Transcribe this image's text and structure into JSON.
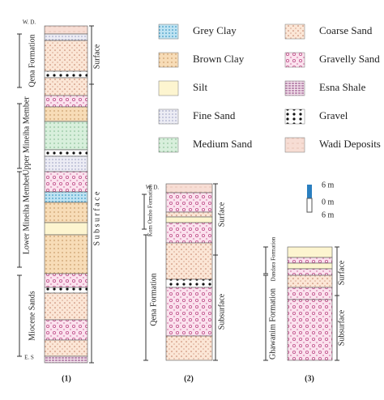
{
  "legend": [
    "Grey Clay",
    "Brown Clay",
    "Silt",
    "Fine Sand",
    "Medium Sand",
    "Coarse Sand",
    "Gravelly Sand",
    "Esna Shale",
    "Gravel",
    "Wadi Deposits"
  ],
  "scale": [
    "6 m",
    "0 m",
    "6 m"
  ],
  "columns": [
    {
      "label": "(1)",
      "formations": [
        "W. D.",
        "Qena Formation",
        "Upper Mineiha Member",
        "Lower Mineiha Member",
        "Miocene Sands",
        "E. S"
      ],
      "zones": [
        "Surface",
        "S u b s u r f a c e"
      ]
    },
    {
      "label": "(2)",
      "formations": [
        "W. D.",
        "Kom Ombo Formation",
        "Qena Formation"
      ],
      "zones": [
        "Surface",
        "Subsurface"
      ]
    },
    {
      "label": "(3)",
      "formations": [
        "Dandara Formation",
        "Ghawanim Formation"
      ],
      "zones": [
        "Surface",
        "Subsurface"
      ]
    }
  ]
}
